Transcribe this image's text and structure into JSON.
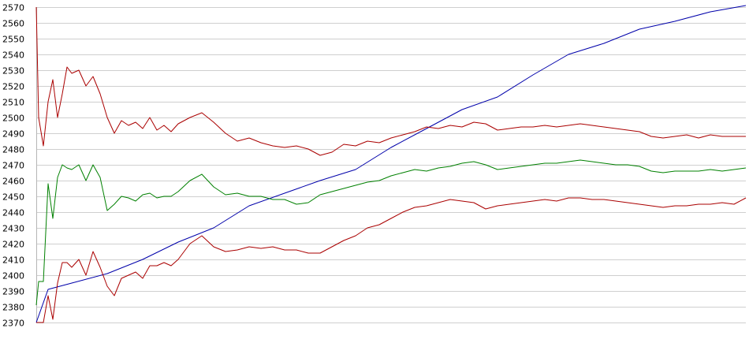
{
  "chart_data": {
    "type": "line",
    "title": "",
    "xlabel": "",
    "ylabel": "",
    "ylim": [
      2370,
      2570
    ],
    "yticks": [
      2370,
      2380,
      2390,
      2400,
      2410,
      2420,
      2430,
      2440,
      2450,
      2460,
      2470,
      2480,
      2490,
      2500,
      2510,
      2520,
      2530,
      2540,
      2550,
      2560,
      2570
    ],
    "grid": true,
    "x_note": "unlabeled sample index 0-300",
    "series": [
      {
        "color": "#0000aa",
        "x": [
          0,
          5,
          15,
          30,
          45,
          60,
          75,
          90,
          105,
          120,
          135,
          150,
          165,
          180,
          195,
          210,
          225,
          240,
          255,
          270,
          285,
          300
        ],
        "values": [
          2370,
          2391,
          2395,
          2401,
          2410,
          2421,
          2430,
          2444,
          2452,
          2460,
          2467,
          2481,
          2493,
          2505,
          2513,
          2527,
          2540,
          2547,
          2556,
          2561,
          2567,
          2571
        ]
      },
      {
        "color": "#aa0000",
        "x": [
          0,
          1,
          3,
          5,
          7,
          9,
          11,
          13,
          15,
          18,
          21,
          24,
          27,
          30,
          33,
          36,
          39,
          42,
          45,
          48,
          51,
          54,
          57,
          60,
          65,
          70,
          75,
          80,
          85,
          90,
          95,
          100,
          105,
          110,
          115,
          120,
          125,
          130,
          135,
          140,
          145,
          150,
          155,
          160,
          165,
          170,
          175,
          180,
          185,
          190,
          195,
          200,
          205,
          210,
          215,
          220,
          225,
          230,
          235,
          240,
          245,
          250,
          255,
          260,
          265,
          270,
          275,
          280,
          285,
          290,
          295,
          300
        ],
        "values": [
          2570,
          2500,
          2482,
          2510,
          2524,
          2500,
          2515,
          2532,
          2528,
          2530,
          2520,
          2526,
          2515,
          2500,
          2490,
          2498,
          2495,
          2497,
          2493,
          2500,
          2492,
          2495,
          2491,
          2496,
          2500,
          2503,
          2497,
          2490,
          2485,
          2487,
          2484,
          2482,
          2481,
          2482,
          2480,
          2476,
          2478,
          2483,
          2482,
          2485,
          2484,
          2487,
          2489,
          2491,
          2494,
          2493,
          2495,
          2494,
          2497,
          2496,
          2492,
          2493,
          2494,
          2494,
          2495,
          2494,
          2495,
          2496,
          2495,
          2494,
          2493,
          2492,
          2491,
          2488,
          2487,
          2488,
          2489,
          2487,
          2489,
          2488,
          2488,
          2488
        ]
      },
      {
        "color": "#008000",
        "x": [
          0,
          1,
          3,
          5,
          7,
          9,
          11,
          13,
          15,
          18,
          21,
          24,
          27,
          30,
          33,
          36,
          39,
          42,
          45,
          48,
          51,
          54,
          57,
          60,
          65,
          70,
          75,
          80,
          85,
          90,
          95,
          100,
          105,
          110,
          115,
          120,
          125,
          130,
          135,
          140,
          145,
          150,
          155,
          160,
          165,
          170,
          175,
          180,
          185,
          190,
          195,
          200,
          205,
          210,
          215,
          220,
          225,
          230,
          235,
          240,
          245,
          250,
          255,
          260,
          265,
          270,
          275,
          280,
          285,
          290,
          295,
          300
        ],
        "values": [
          2381,
          2396,
          2396,
          2458,
          2436,
          2462,
          2470,
          2468,
          2467,
          2470,
          2460,
          2470,
          2462,
          2441,
          2445,
          2450,
          2449,
          2447,
          2451,
          2452,
          2449,
          2450,
          2450,
          2453,
          2460,
          2464,
          2456,
          2451,
          2452,
          2450,
          2450,
          2448,
          2448,
          2445,
          2446,
          2451,
          2453,
          2455,
          2457,
          2459,
          2460,
          2463,
          2465,
          2467,
          2466,
          2468,
          2469,
          2471,
          2472,
          2470,
          2467,
          2468,
          2469,
          2470,
          2471,
          2471,
          2472,
          2473,
          2472,
          2471,
          2470,
          2470,
          2469,
          2466,
          2465,
          2466,
          2466,
          2466,
          2467,
          2466,
          2467,
          2468
        ]
      },
      {
        "color": "#aa0000",
        "x": [
          0,
          1,
          3,
          5,
          7,
          9,
          11,
          13,
          15,
          18,
          21,
          24,
          27,
          30,
          33,
          36,
          39,
          42,
          45,
          48,
          51,
          54,
          57,
          60,
          65,
          70,
          75,
          80,
          85,
          90,
          95,
          100,
          105,
          110,
          115,
          120,
          125,
          130,
          135,
          140,
          145,
          150,
          155,
          160,
          165,
          170,
          175,
          180,
          185,
          190,
          195,
          200,
          205,
          210,
          215,
          220,
          225,
          230,
          235,
          240,
          245,
          250,
          255,
          260,
          265,
          270,
          275,
          280,
          285,
          290,
          295,
          300
        ],
        "values": [
          2370,
          2370,
          2370,
          2387,
          2372,
          2395,
          2408,
          2408,
          2405,
          2410,
          2400,
          2415,
          2405,
          2393,
          2387,
          2398,
          2400,
          2402,
          2398,
          2406,
          2406,
          2408,
          2406,
          2410,
          2420,
          2425,
          2418,
          2415,
          2416,
          2418,
          2417,
          2418,
          2416,
          2416,
          2414,
          2414,
          2418,
          2422,
          2425,
          2430,
          2432,
          2436,
          2440,
          2443,
          2444,
          2446,
          2448,
          2447,
          2446,
          2442,
          2444,
          2445,
          2446,
          2447,
          2448,
          2447,
          2449,
          2449,
          2448,
          2448,
          2447,
          2446,
          2445,
          2444,
          2443,
          2444,
          2444,
          2445,
          2445,
          2446,
          2445,
          2449
        ]
      }
    ]
  }
}
